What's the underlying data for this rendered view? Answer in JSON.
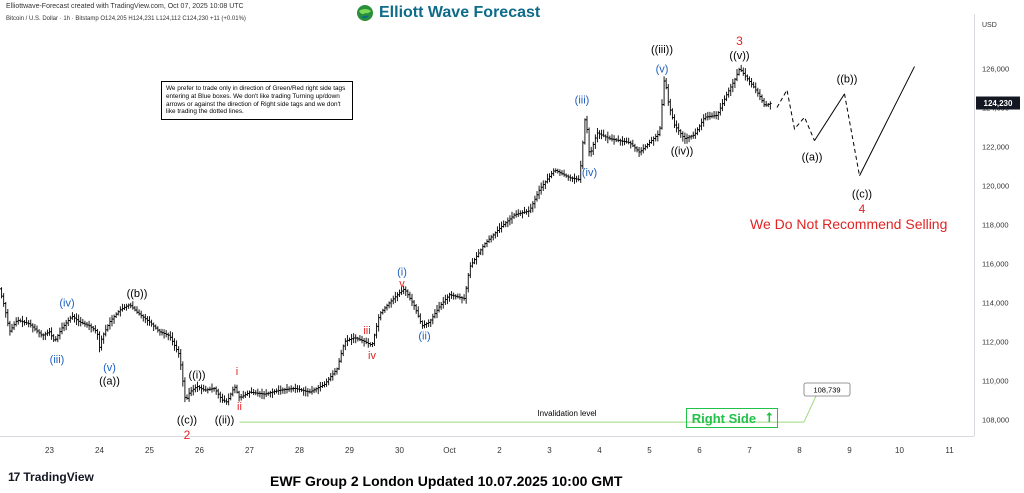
{
  "header": {
    "created_by": "Elliottwave-Forecast created with TradingView.com, Oct 07, 2025 10:08 UTC",
    "series_line": "Bitcoin / U.S. Dollar · 1h · Bitstamp  O124,205  H124,231  L124,112  C124,230  +11 (+0.01%)"
  },
  "brand": {
    "name": "Elliott Wave Forecast"
  },
  "note": "We prefer to trade only in direction of Green/Red right side tags entering at Blue boxes. We don't like trading Turning up/down arrows or against the direction of Right side tags and we don't like trading the dotted lines.",
  "warning": "We Do Not Recommend Selling",
  "right_side": {
    "label": "Right Side",
    "arrow": "⭡"
  },
  "footer": {
    "title": "EWF Group 2 London Updated 10.07.2025 10:00 GMT",
    "tv_mark": "17",
    "tv_name": "TradingView"
  },
  "colors": {
    "black": "#000000",
    "blue": "#1f5fbf",
    "red": "#e22323",
    "green": "#22c14a",
    "invalidation": "#9fd87f"
  },
  "chart_data": {
    "type": "ohlc",
    "currency": "USD",
    "x_ticks": [
      "23",
      "24",
      "25",
      "26",
      "27",
      "28",
      "29",
      "30",
      "Oct",
      "2",
      "3",
      "4",
      "5",
      "6",
      "7",
      "8",
      "9",
      "10",
      "11"
    ],
    "y_ticks": [
      "108,000",
      "110,000",
      "112,000",
      "114,000",
      "116,000",
      "118,000",
      "120,000",
      "122,000",
      "124,000",
      "126,000"
    ],
    "ylim": [
      106800,
      127400
    ],
    "last_price": "124,230",
    "invalidation": {
      "value": 108739,
      "label": "108,739",
      "text": "Invalidation level",
      "from_day": 26.8,
      "to_day": 32.3
    },
    "price_path": [
      [
        22.0,
        114700
      ],
      [
        22.1,
        113800
      ],
      [
        22.2,
        112500
      ],
      [
        22.35,
        113100
      ],
      [
        22.6,
        112900
      ],
      [
        22.85,
        112300
      ],
      [
        23.0,
        112500
      ],
      [
        23.1,
        112000
      ],
      [
        23.25,
        112700
      ],
      [
        23.45,
        113300
      ],
      [
        23.6,
        113000
      ],
      [
        23.8,
        112800
      ],
      [
        23.95,
        112500
      ],
      [
        24.0,
        111700
      ],
      [
        24.05,
        112200
      ],
      [
        24.2,
        113000
      ],
      [
        24.4,
        113600
      ],
      [
        24.6,
        113900
      ],
      [
        24.75,
        113500
      ],
      [
        25.0,
        113000
      ],
      [
        25.2,
        112500
      ],
      [
        25.4,
        112300
      ],
      [
        25.6,
        111300
      ],
      [
        25.72,
        108900
      ],
      [
        25.8,
        109400
      ],
      [
        25.95,
        109700
      ],
      [
        26.1,
        109500
      ],
      [
        26.3,
        109600
      ],
      [
        26.45,
        109000
      ],
      [
        26.55,
        108900
      ],
      [
        26.7,
        109700
      ],
      [
        26.8,
        109100
      ],
      [
        27.0,
        109400
      ],
      [
        27.3,
        109300
      ],
      [
        27.6,
        109500
      ],
      [
        27.9,
        109600
      ],
      [
        28.2,
        109400
      ],
      [
        28.5,
        109800
      ],
      [
        28.75,
        110600
      ],
      [
        28.9,
        112000
      ],
      [
        29.1,
        112200
      ],
      [
        29.3,
        112000
      ],
      [
        29.45,
        111800
      ],
      [
        29.6,
        113400
      ],
      [
        29.8,
        114000
      ],
      [
        30.0,
        114500
      ],
      [
        30.1,
        114700
      ],
      [
        30.3,
        113800
      ],
      [
        30.45,
        112800
      ],
      [
        30.6,
        113000
      ],
      [
        30.8,
        113800
      ],
      [
        31.0,
        114400
      ],
      [
        31.3,
        114200
      ],
      [
        31.4,
        115800
      ],
      [
        31.7,
        117000
      ],
      [
        32.0,
        117800
      ],
      [
        32.3,
        118500
      ],
      [
        32.6,
        118700
      ],
      [
        32.8,
        119800
      ],
      [
        33.1,
        120800
      ],
      [
        33.4,
        120400
      ],
      [
        33.6,
        120300
      ],
      [
        33.72,
        123700
      ],
      [
        33.8,
        121500
      ],
      [
        33.95,
        122700
      ],
      [
        34.2,
        122400
      ],
      [
        34.6,
        122200
      ],
      [
        34.8,
        121700
      ],
      [
        35.0,
        122200
      ],
      [
        35.2,
        122700
      ],
      [
        35.3,
        125600
      ],
      [
        35.38,
        124200
      ],
      [
        35.5,
        123100
      ],
      [
        35.7,
        122400
      ],
      [
        35.9,
        122600
      ],
      [
        36.1,
        123500
      ],
      [
        36.35,
        123600
      ],
      [
        36.55,
        124700
      ],
      [
        36.7,
        125400
      ],
      [
        36.8,
        126000
      ],
      [
        36.95,
        125500
      ],
      [
        37.1,
        125000
      ],
      [
        37.2,
        124600
      ],
      [
        37.3,
        124100
      ],
      [
        37.45,
        124230
      ]
    ],
    "projection": [
      {
        "style": "dashed",
        "points": [
          [
            37.55,
            124000
          ],
          [
            37.75,
            124900
          ],
          [
            37.9,
            122900
          ],
          [
            38.1,
            123500
          ],
          [
            38.3,
            122300
          ]
        ]
      },
      {
        "style": "solid",
        "points": [
          [
            38.3,
            122300
          ],
          [
            38.9,
            124700
          ]
        ]
      },
      {
        "style": "dashed",
        "points": [
          [
            38.9,
            124700
          ],
          [
            39.2,
            120500
          ]
        ]
      },
      {
        "style": "solid",
        "points": [
          [
            39.2,
            120500
          ],
          [
            40.3,
            126100
          ]
        ]
      }
    ],
    "wave_labels": [
      {
        "text": "(iii)",
        "day": 23.15,
        "price": 111100,
        "color": "blue"
      },
      {
        "text": "(iv)",
        "day": 23.35,
        "price": 114000,
        "color": "blue"
      },
      {
        "text": "(v)",
        "day": 24.2,
        "price": 110700,
        "color": "blue"
      },
      {
        "text": "((a))",
        "day": 24.2,
        "price": 110000,
        "color": "black"
      },
      {
        "text": "((b))",
        "day": 24.75,
        "price": 114500,
        "color": "black"
      },
      {
        "text": "((c))",
        "day": 25.75,
        "price": 108000,
        "color": "black"
      },
      {
        "text": "2",
        "day": 25.75,
        "price": 107200,
        "color": "red"
      },
      {
        "text": "((i))",
        "day": 25.95,
        "price": 110300,
        "color": "black"
      },
      {
        "text": "((ii))",
        "day": 26.5,
        "price": 108000,
        "color": "black"
      },
      {
        "text": "i",
        "day": 26.75,
        "price": 110500,
        "color": "red"
      },
      {
        "text": "ii",
        "day": 26.8,
        "price": 108700,
        "color": "red"
      },
      {
        "text": "iii",
        "day": 29.35,
        "price": 112600,
        "color": "red"
      },
      {
        "text": "iv",
        "day": 29.45,
        "price": 111300,
        "color": "red"
      },
      {
        "text": "(i)",
        "day": 30.05,
        "price": 115600,
        "color": "blue"
      },
      {
        "text": "v",
        "day": 30.05,
        "price": 115000,
        "color": "red"
      },
      {
        "text": "(ii)",
        "day": 30.5,
        "price": 112300,
        "color": "blue"
      },
      {
        "text": "(iii)",
        "day": 33.65,
        "price": 124400,
        "color": "blue"
      },
      {
        "text": "(iv)",
        "day": 33.8,
        "price": 120700,
        "color": "blue"
      },
      {
        "text": "((iii))",
        "day": 35.25,
        "price": 127000,
        "color": "black"
      },
      {
        "text": "(v)",
        "day": 35.25,
        "price": 126000,
        "color": "blue"
      },
      {
        "text": "((iv))",
        "day": 35.65,
        "price": 121800,
        "color": "black"
      },
      {
        "text": "3",
        "day": 36.8,
        "price": 127400,
        "color": "red"
      },
      {
        "text": "((v))",
        "day": 36.8,
        "price": 126700,
        "color": "black"
      },
      {
        "text": "((a))",
        "day": 38.25,
        "price": 121500,
        "color": "black"
      },
      {
        "text": "((b))",
        "day": 38.95,
        "price": 125500,
        "color": "black"
      },
      {
        "text": "((c))",
        "day": 39.25,
        "price": 119600,
        "color": "black"
      },
      {
        "text": "4",
        "day": 39.25,
        "price": 118800,
        "color": "red"
      }
    ]
  }
}
